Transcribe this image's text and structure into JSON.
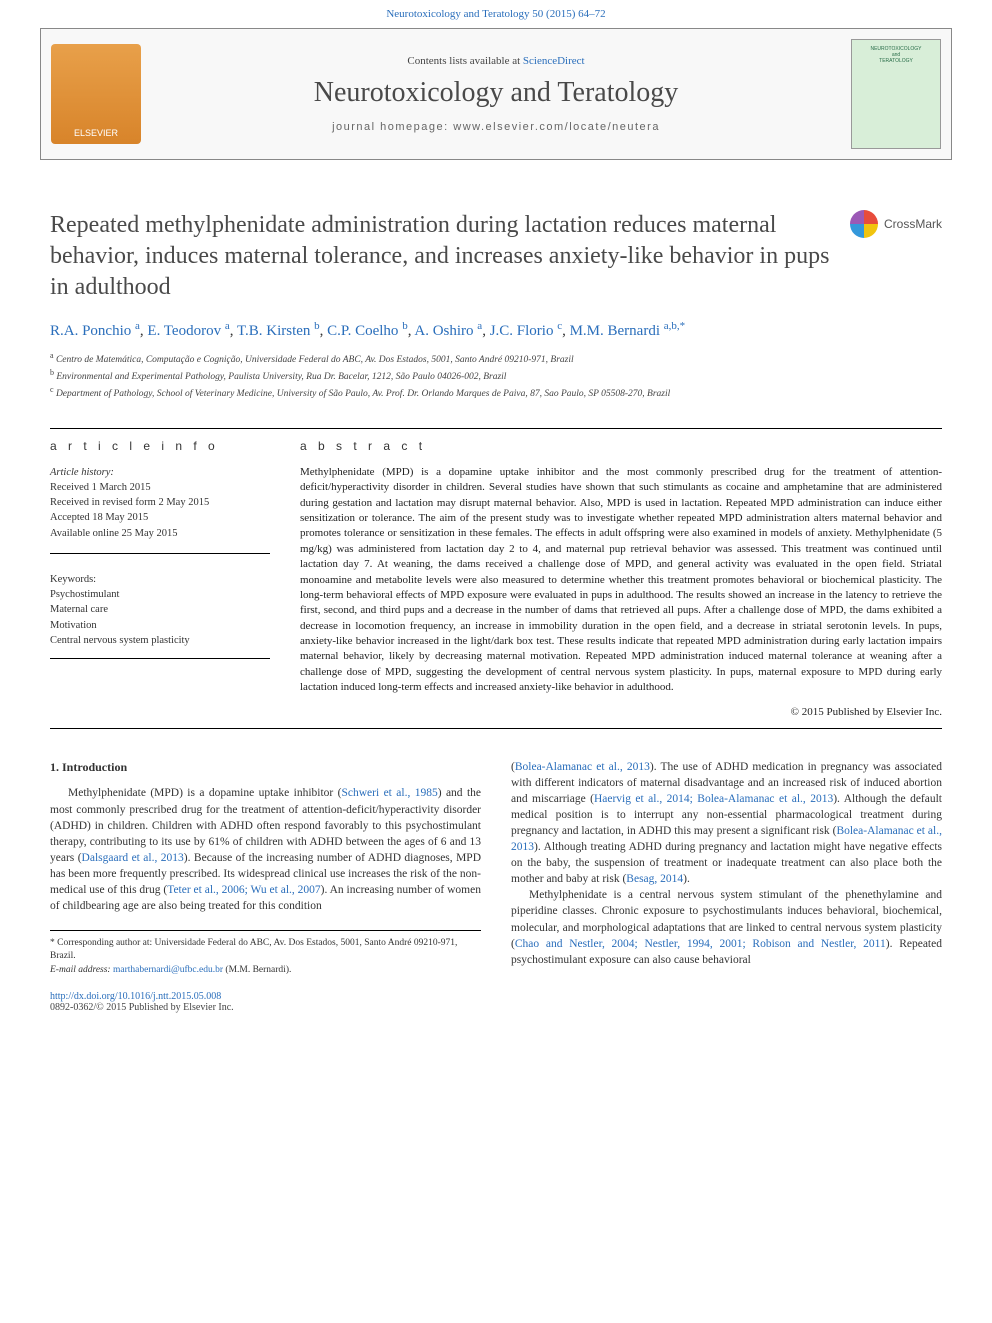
{
  "journal_ref": "Neurotoxicology and Teratology 50 (2015) 64–72",
  "header": {
    "contents_prefix": "Contents lists available at ",
    "contents_link": "ScienceDirect",
    "journal": "Neurotoxicology and Teratology",
    "homepage_prefix": "journal homepage: ",
    "homepage_url": "www.elsevier.com/locate/neutera",
    "publisher_logo_text": "ELSEVIER",
    "cover_line1": "NEUROTOXICOLOGY",
    "cover_line2": "and",
    "cover_line3": "TERATOLOGY"
  },
  "crossmark_label": "CrossMark",
  "title": "Repeated methylphenidate administration during lactation reduces maternal behavior, induces maternal tolerance, and increases anxiety-like behavior in pups in adulthood",
  "authors_html_parts": [
    {
      "name": "R.A. Ponchio",
      "aff": "a"
    },
    {
      "name": "E. Teodorov",
      "aff": "a"
    },
    {
      "name": "T.B. Kirsten",
      "aff": "b"
    },
    {
      "name": "C.P. Coelho",
      "aff": "b"
    },
    {
      "name": "A. Oshiro",
      "aff": "a"
    },
    {
      "name": "J.C. Florio",
      "aff": "c"
    },
    {
      "name": "M.M. Bernardi",
      "aff": "a,b,*"
    }
  ],
  "affiliations": [
    {
      "key": "a",
      "text": "Centro de Matemática, Computação e Cognição, Universidade Federal do ABC, Av. Dos Estados, 5001, Santo André 09210-971, Brazil"
    },
    {
      "key": "b",
      "text": "Environmental and Experimental Pathology, Paulista University, Rua Dr. Bacelar, 1212, São Paulo 04026-002, Brazil"
    },
    {
      "key": "c",
      "text": "Department of Pathology, School of Veterinary Medicine, University of São Paulo, Av. Prof. Dr. Orlando Marques de Paiva, 87, Sao Paulo, SP 05508-270, Brazil"
    }
  ],
  "info_label": "a r t i c l e   i n f o",
  "abstract_label": "a b s t r a c t",
  "history": {
    "heading": "Article history:",
    "received": "Received 1 March 2015",
    "revised": "Received in revised form 2 May 2015",
    "accepted": "Accepted 18 May 2015",
    "online": "Available online 25 May 2015"
  },
  "keywords": {
    "heading": "Keywords:",
    "items": [
      "Psychostimulant",
      "Maternal care",
      "Motivation",
      "Central nervous system plasticity"
    ]
  },
  "abstract": "Methylphenidate (MPD) is a dopamine uptake inhibitor and the most commonly prescribed drug for the treatment of attention-deficit/hyperactivity disorder in children. Several studies have shown that such stimulants as cocaine and amphetamine that are administered during gestation and lactation may disrupt maternal behavior. Also, MPD is used in lactation. Repeated MPD administration can induce either sensitization or tolerance. The aim of the present study was to investigate whether repeated MPD administration alters maternal behavior and promotes tolerance or sensitization in these females. The effects in adult offspring were also examined in models of anxiety. Methylphenidate (5 mg/kg) was administered from lactation day 2 to 4, and maternal pup retrieval behavior was assessed. This treatment was continued until lactation day 7. At weaning, the dams received a challenge dose of MPD, and general activity was evaluated in the open field. Striatal monoamine and metabolite levels were also measured to determine whether this treatment promotes behavioral or biochemical plasticity. The long-term behavioral effects of MPD exposure were evaluated in pups in adulthood. The results showed an increase in the latency to retrieve the first, second, and third pups and a decrease in the number of dams that retrieved all pups. After a challenge dose of MPD, the dams exhibited a decrease in locomotion frequency, an increase in immobility duration in the open field, and a decrease in striatal serotonin levels. In pups, anxiety-like behavior increased in the light/dark box test. These results indicate that repeated MPD administration during early lactation impairs maternal behavior, likely by decreasing maternal motivation. Repeated MPD administration induced maternal tolerance at weaning after a challenge dose of MPD, suggesting the development of central nervous system plasticity. In pups, maternal exposure to MPD during early lactation induced long-term effects and increased anxiety-like behavior in adulthood.",
  "copyright": "© 2015 Published by Elsevier Inc.",
  "intro_heading": "1. Introduction",
  "body_left_1a": "Methylphenidate (MPD) is a dopamine uptake inhibitor (",
  "body_left_cite1": "Schweri et al., 1985",
  "body_left_1b": ") and the most commonly prescribed drug for the treatment of attention-deficit/hyperactivity disorder (ADHD) in children. Children with ADHD often respond favorably to this psychostimulant therapy, contributing to its use by 61% of children with ADHD between the ages of 6 and 13 years (",
  "body_left_cite2": "Dalsgaard et al., 2013",
  "body_left_1c": "). Because of the increasing number of ADHD diagnoses, MPD has been more frequently prescribed. Its widespread clinical use increases the risk of the non-medical use of this drug (",
  "body_left_cite3": "Teter et al., 2006; Wu et al., 2007",
  "body_left_1d": "). An increasing number of women of childbearing age are also being treated for this condition",
  "body_right_1a": "(",
  "body_right_cite1": "Bolea-Alamanac et al., 2013",
  "body_right_1b": "). The use of ADHD medication in pregnancy was associated with different indicators of maternal disadvantage and an increased risk of induced abortion and miscarriage (",
  "body_right_cite2": "Haervig et al., 2014; Bolea-Alamanac et al., 2013",
  "body_right_1c": "). Although the default medical position is to interrupt any non-essential pharmacological treatment during pregnancy and lactation, in ADHD this may present a significant risk (",
  "body_right_cite3": "Bolea-Alamanac et al., 2013",
  "body_right_1d": "). Although treating ADHD during pregnancy and lactation might have negative effects on the baby, the suspension of treatment or inadequate treatment can also place both the mother and baby at risk (",
  "body_right_cite4": "Besag, 2014",
  "body_right_1e": ").",
  "body_right_2a": "Methylphenidate is a central nervous system stimulant of the phenethylamine and piperidine classes. Chronic exposure to psychostimulants induces behavioral, biochemical, molecular, and morphological adaptations that are linked to central nervous system plasticity (",
  "body_right_cite5": "Chao and Nestler, 2004; Nestler, 1994, 2001; Robison and Nestler, 2011",
  "body_right_2b": "). Repeated psychostimulant exposure can also cause behavioral",
  "footnote_corr": "* Corresponding author at: Universidade Federal do ABC, Av. Dos Estados, 5001, Santo André 09210-971, Brazil.",
  "footnote_email_label": "E-mail address: ",
  "footnote_email": "marthabernardi@ufbc.edu.br",
  "footnote_email_name": " (M.M. Bernardi).",
  "doi": "http://dx.doi.org/10.1016/j.ntt.2015.05.008",
  "issn_line": "0892-0362/© 2015 Published by Elsevier Inc.",
  "colors": {
    "link": "#2a6ebb",
    "text": "#333333",
    "rule": "#000000",
    "header_bg": "#f8f8f8",
    "logo_bg": "#d8842a",
    "cover_bg": "#d8eed8"
  }
}
